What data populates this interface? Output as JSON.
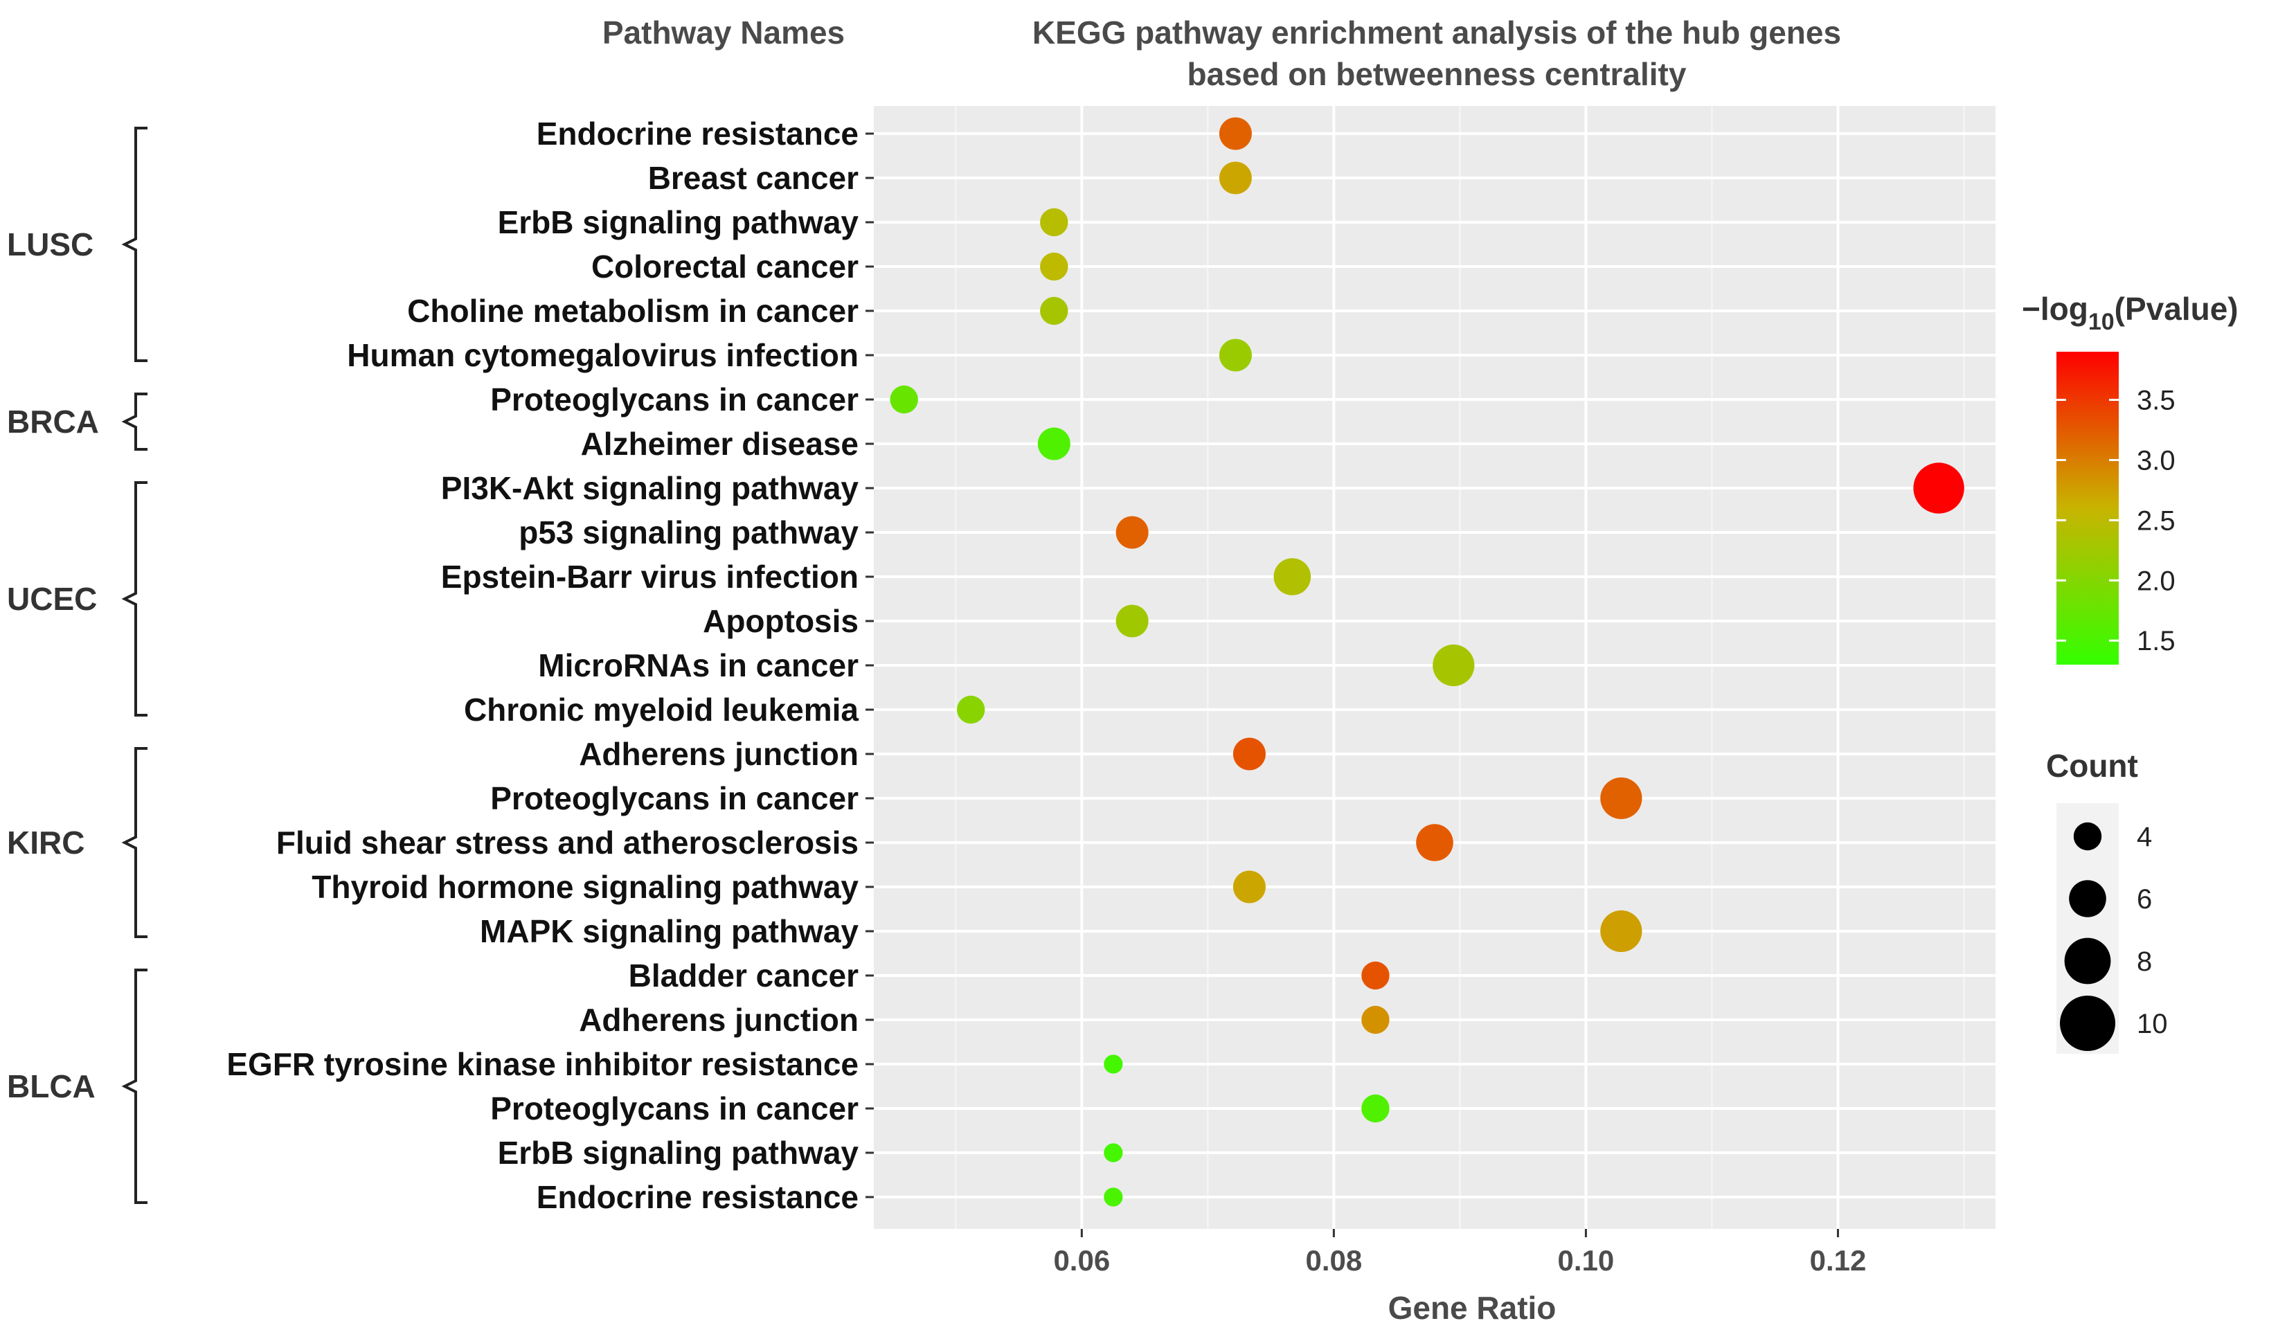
{
  "header": {
    "pathway_names": "Pathway Names",
    "title_line1": "KEGG pathway enrichment analysis of the hub genes",
    "title_line2": "based on betweenness centrality"
  },
  "chart_data": {
    "type": "scatter",
    "title": "KEGG pathway enrichment analysis of the hub genes based on betweenness centrality",
    "xlabel": "Gene Ratio",
    "ylabel": "Pathway Names",
    "xlim": [
      0.0435,
      0.1325
    ],
    "xticks": [
      0.06,
      0.08,
      0.1,
      0.12
    ],
    "xtick_labels": [
      "0.06",
      "0.08",
      "0.10",
      "0.12"
    ],
    "grid": true,
    "color_legend": {
      "title_prefix": "−log",
      "title_sub": "10",
      "title_suffix": "(Pvalue)",
      "min": 1.3,
      "max": 3.9,
      "ticks": [
        1.5,
        2.0,
        2.5,
        3.0,
        3.5
      ],
      "tick_labels": [
        "1.5",
        "2.0",
        "2.5",
        "3.0",
        "3.5"
      ],
      "low_color": "#33ff00",
      "mid_color": "#c8b400",
      "high_color": "#ff0000"
    },
    "size_legend": {
      "title": "Count",
      "values": [
        4,
        6,
        8,
        10
      ],
      "labels": [
        "4",
        "6",
        "8",
        "10"
      ]
    },
    "groups": [
      {
        "name": "LUSC",
        "start": 0,
        "end": 5
      },
      {
        "name": "BRCA",
        "start": 6,
        "end": 7
      },
      {
        "name": "UCEC",
        "start": 8,
        "end": 13
      },
      {
        "name": "KIRC",
        "start": 14,
        "end": 18
      },
      {
        "name": "BLCA",
        "start": 19,
        "end": 24
      }
    ],
    "points": [
      {
        "pathway": "Endocrine resistance",
        "gene_ratio": 0.0722,
        "neglog10p": 3.2,
        "count": 5
      },
      {
        "pathway": "Breast cancer",
        "gene_ratio": 0.0722,
        "neglog10p": 2.7,
        "count": 5
      },
      {
        "pathway": "ErbB signaling pathway",
        "gene_ratio": 0.0578,
        "neglog10p": 2.45,
        "count": 4
      },
      {
        "pathway": "Colorectal cancer",
        "gene_ratio": 0.0578,
        "neglog10p": 2.5,
        "count": 4
      },
      {
        "pathway": "Choline metabolism in cancer",
        "gene_ratio": 0.0578,
        "neglog10p": 2.3,
        "count": 4
      },
      {
        "pathway": "Human cytomegalovirus infection",
        "gene_ratio": 0.0722,
        "neglog10p": 2.2,
        "count": 5
      },
      {
        "pathway": "Proteoglycans in cancer",
        "gene_ratio": 0.0459,
        "neglog10p": 1.75,
        "count": 4
      },
      {
        "pathway": "Alzheimer disease",
        "gene_ratio": 0.0578,
        "neglog10p": 1.55,
        "count": 5
      },
      {
        "pathway": "PI3K-Akt signaling pathway",
        "gene_ratio": 0.128,
        "neglog10p": 3.9,
        "count": 9
      },
      {
        "pathway": "p53 signaling pathway",
        "gene_ratio": 0.064,
        "neglog10p": 3.2,
        "count": 5
      },
      {
        "pathway": "Epstein-Barr virus infection",
        "gene_ratio": 0.0767,
        "neglog10p": 2.4,
        "count": 6
      },
      {
        "pathway": "Apoptosis",
        "gene_ratio": 0.064,
        "neglog10p": 2.25,
        "count": 5
      },
      {
        "pathway": "MicroRNAs in cancer",
        "gene_ratio": 0.0895,
        "neglog10p": 2.3,
        "count": 7
      },
      {
        "pathway": "Chronic myeloid leukemia",
        "gene_ratio": 0.0512,
        "neglog10p": 2.05,
        "count": 4
      },
      {
        "pathway": "Adherens junction",
        "gene_ratio": 0.0733,
        "neglog10p": 3.3,
        "count": 5
      },
      {
        "pathway": "Proteoglycans in cancer",
        "gene_ratio": 0.1028,
        "neglog10p": 3.2,
        "count": 7
      },
      {
        "pathway": "Fluid shear stress and atherosclerosis",
        "gene_ratio": 0.088,
        "neglog10p": 3.25,
        "count": 6
      },
      {
        "pathway": "Thyroid hormone signaling pathway",
        "gene_ratio": 0.0733,
        "neglog10p": 2.7,
        "count": 5
      },
      {
        "pathway": "MAPK signaling pathway",
        "gene_ratio": 0.1028,
        "neglog10p": 2.75,
        "count": 7
      },
      {
        "pathway": "Bladder cancer",
        "gene_ratio": 0.0833,
        "neglog10p": 3.3,
        "count": 4
      },
      {
        "pathway": "Adherens junction",
        "gene_ratio": 0.0833,
        "neglog10p": 2.85,
        "count": 4
      },
      {
        "pathway": "EGFR tyrosine kinase inhibitor resistance",
        "gene_ratio": 0.0625,
        "neglog10p": 1.45,
        "count": 2
      },
      {
        "pathway": "Proteoglycans in cancer",
        "gene_ratio": 0.0833,
        "neglog10p": 1.55,
        "count": 4
      },
      {
        "pathway": "ErbB signaling pathway",
        "gene_ratio": 0.0625,
        "neglog10p": 1.45,
        "count": 2
      },
      {
        "pathway": "Endocrine resistance",
        "gene_ratio": 0.0625,
        "neglog10p": 1.5,
        "count": 2
      }
    ]
  }
}
